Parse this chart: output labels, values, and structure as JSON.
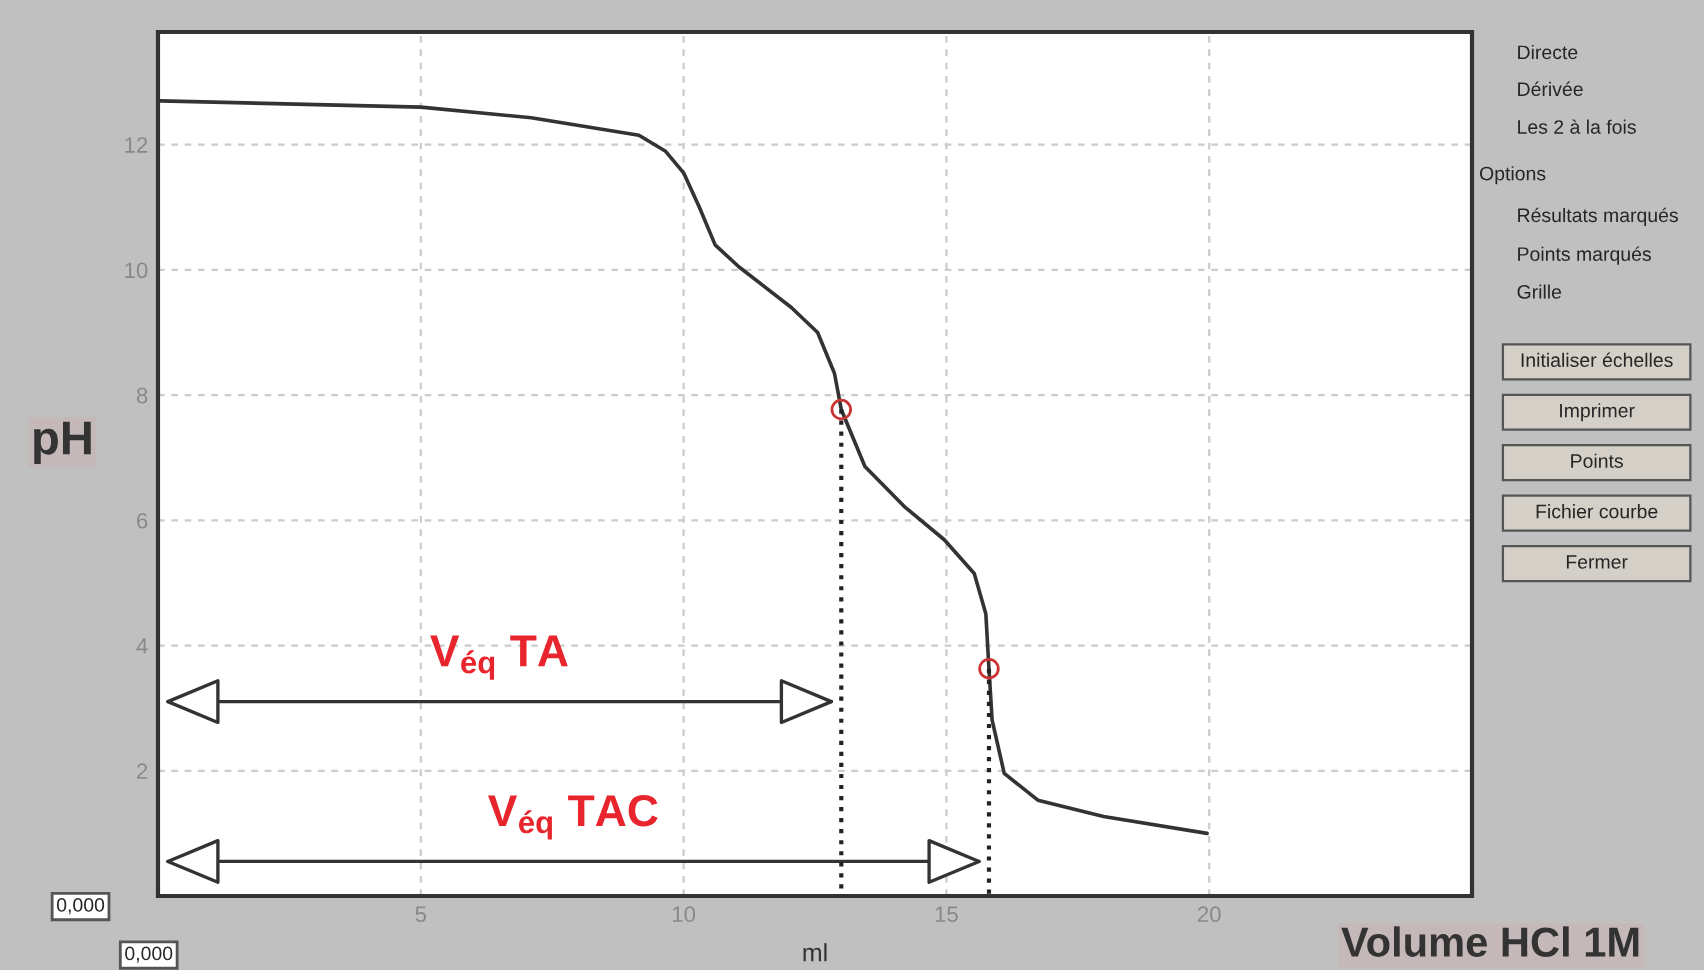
{
  "chart_data": {
    "type": "line",
    "xlabel": "ml",
    "ylabel": "pH",
    "xlim": [
      0,
      25
    ],
    "ylim": [
      0,
      13.8
    ],
    "xticks": [
      5,
      10,
      15,
      20
    ],
    "yticks": [
      2,
      4,
      6,
      8,
      10,
      12
    ],
    "grid": true,
    "legend": false,
    "line_style": "solid",
    "marker": "none",
    "series": [
      {
        "color": "#333333",
        "x": [
          0.04,
          5,
          7.1,
          9.15,
          9.65,
          10.0,
          10.3,
          10.6,
          11.05,
          12.05,
          12.55,
          12.87,
          13.0,
          13.45,
          14.2,
          14.96,
          15.53,
          15.75,
          15.81,
          15.87,
          16.1,
          16.74,
          17.99,
          19.96
        ],
        "values": [
          12.7,
          12.6,
          12.43,
          12.15,
          11.9,
          11.55,
          11.0,
          10.4,
          10.05,
          9.4,
          9.0,
          8.35,
          7.77,
          6.86,
          6.22,
          5.69,
          5.15,
          4.51,
          3.63,
          2.81,
          1.96,
          1.53,
          1.27,
          1.0
        ]
      },
      {
        "type": "scatter",
        "color": "#cc3333",
        "marker": "circle",
        "x": [
          13.0,
          15.81
        ],
        "values": [
          7.77,
          3.63
        ]
      },
      {
        "color": "#222222",
        "line_style": "dotted",
        "x": [
          13.0,
          13.0
        ],
        "values": [
          7.77,
          0
        ]
      },
      {
        "color": "#222222",
        "line_style": "dotted",
        "x": [
          15.81,
          15.81
        ],
        "values": [
          3.63,
          0
        ]
      }
    ],
    "annotations": [
      "V$_{éq}$ TA",
      "V$_{éq}$ TAC",
      "Volume HCl 1M",
      "0,000",
      "0,000",
      "Directe",
      "Dérivée",
      "Les 2 à la fois",
      "Options",
      "Résultats marqués",
      "Points marqués",
      "Grille",
      "Initialiser échelles",
      "Imprimer",
      "Points",
      "Fichier courbe",
      "Fermer"
    ]
  }
}
